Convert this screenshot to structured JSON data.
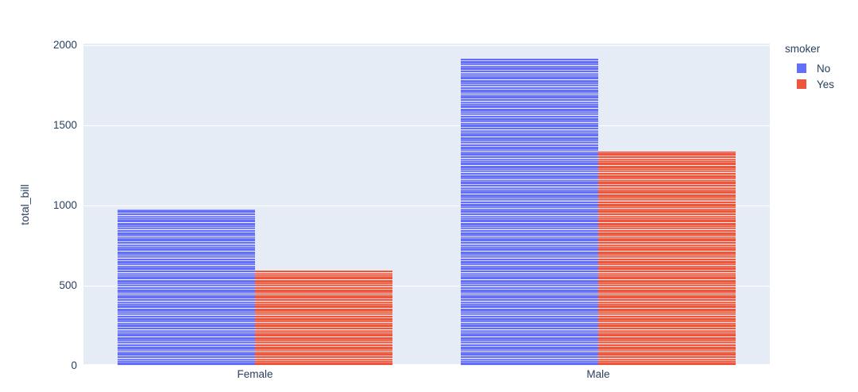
{
  "chart_data": {
    "type": "bar",
    "mode": "grouped",
    "categories": [
      "Female",
      "Male"
    ],
    "series": [
      {
        "name": "No",
        "color": "#636EFA",
        "values": [
          977.68,
          1919.75
        ]
      },
      {
        "name": "Yes",
        "color": "#EF553B",
        "values": [
          593.27,
          1337.07
        ]
      }
    ],
    "title": "",
    "xlabel": "",
    "ylabel": "total_bill",
    "legend_title": "smoker",
    "legend_position": "top-right",
    "ylim": [
      0,
      2010
    ],
    "yticks": [
      0,
      500,
      1000,
      1500,
      2000
    ],
    "grid": true,
    "bar_style": "each bar is a stack of individual records separated by thin white lines",
    "colors": {
      "plot_background": "#E5ECF6",
      "paper_background": "#FFFFFF",
      "gridline": "#FFFFFF",
      "text": "#2a3f5f"
    }
  }
}
